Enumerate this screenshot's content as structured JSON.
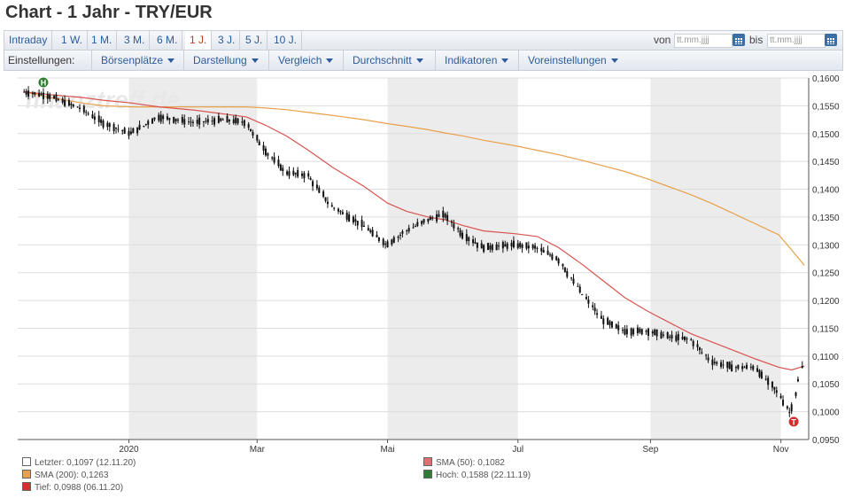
{
  "title": "Chart - 1 Jahr - TRY/EUR",
  "ranges": [
    "Intraday",
    "1 W.",
    "1 M.",
    "3 M.",
    "6 M.",
    "1 J.",
    "3 J.",
    "5 J.",
    "10 J."
  ],
  "active_range": "1 J.",
  "date_from_label": "von",
  "date_to_label": "bis",
  "date_placeholder": "tt.mm.jjjj",
  "settings_label": "Einstellungen:",
  "menus": [
    "Börsenplätze",
    "Darstellung",
    "Vergleich",
    "Durchschnitt",
    "Indikatoren",
    "Voreinstellungen"
  ],
  "watermark": "finanztreff.de",
  "colors": {
    "candle": "#111111",
    "sma50": "#d9534f",
    "sma200": "#e8a04a",
    "band": "#ececec",
    "grid": "#dddddd",
    "high_marker": "#2e7d32",
    "low_marker": "#d32f2f"
  },
  "legend": [
    {
      "label": "Letzter: 0,1097 (12.11.20)",
      "color": "#ffffff"
    },
    {
      "label": "SMA (50): 0,1082",
      "color": "#e07070"
    },
    {
      "label": "SMA (200): 0,1263",
      "color": "#e8a04a"
    },
    {
      "label": "Hoch: 0,1588 (22.11.19)",
      "color": "#2e7d32"
    },
    {
      "label": "Tief: 0,0988 (06.11.20)",
      "color": "#d32f2f"
    }
  ],
  "markers": {
    "high_letter": "H",
    "low_letter": "T"
  },
  "chart_data": {
    "type": "line",
    "ylim": [
      0.095,
      0.16
    ],
    "y_ticks": [
      "0,1600",
      "0,1550",
      "0,1500",
      "0,1450",
      "0,1400",
      "0,1350",
      "0,1300",
      "0,1250",
      "0,1200",
      "0,1150",
      "0,1100",
      "0,1050",
      "0,1000",
      "0,0950"
    ],
    "x_ticks": [
      "2020",
      "Mar",
      "Mai",
      "Jul",
      "Sep",
      "Nov"
    ],
    "x": [
      "2019-11-13",
      "2019-11-25",
      "2019-12-10",
      "2019-12-20",
      "2020-01-02",
      "2020-01-15",
      "2020-02-01",
      "2020-02-15",
      "2020-02-25",
      "2020-03-05",
      "2020-03-15",
      "2020-03-25",
      "2020-04-05",
      "2020-04-20",
      "2020-05-01",
      "2020-05-10",
      "2020-05-20",
      "2020-05-28",
      "2020-06-05",
      "2020-06-15",
      "2020-06-30",
      "2020-07-10",
      "2020-07-20",
      "2020-07-31",
      "2020-08-10",
      "2020-08-20",
      "2020-08-31",
      "2020-09-10",
      "2020-09-20",
      "2020-09-30",
      "2020-10-10",
      "2020-10-20",
      "2020-10-31",
      "2020-11-06",
      "2020-11-12"
    ],
    "series": [
      {
        "values": [
          0.1575,
          0.1568,
          0.1545,
          0.152,
          0.15,
          0.153,
          0.152,
          0.1525,
          0.152,
          0.147,
          0.143,
          0.1425,
          0.137,
          0.1335,
          0.13,
          0.1325,
          0.1345,
          0.1355,
          0.132,
          0.1295,
          0.13,
          0.1295,
          0.1275,
          0.1215,
          0.1165,
          0.1145,
          0.1145,
          0.1135,
          0.113,
          0.109,
          0.108,
          0.108,
          0.1035,
          0.0995,
          0.1097
        ]
      },
      {
        "values": [
          0.1575,
          0.157,
          0.1565,
          0.156,
          0.1555,
          0.1548,
          0.1542,
          0.1535,
          0.153,
          0.1515,
          0.1495,
          0.147,
          0.144,
          0.1405,
          0.1375,
          0.136,
          0.135,
          0.1345,
          0.1335,
          0.1325,
          0.132,
          0.1315,
          0.1295,
          0.1265,
          0.1235,
          0.1205,
          0.118,
          0.116,
          0.114,
          0.1125,
          0.111,
          0.1095,
          0.108,
          0.1075,
          0.1082
        ]
      },
      {
        "values": [
          0.1575,
          0.1565,
          0.1555,
          0.155,
          0.1548,
          0.1548,
          0.1548,
          0.1548,
          0.1548,
          0.1546,
          0.1543,
          0.1538,
          0.1533,
          0.1525,
          0.1518,
          0.1513,
          0.1507,
          0.1501,
          0.1496,
          0.1488,
          0.1478,
          0.147,
          0.1462,
          0.1452,
          0.1442,
          0.1432,
          0.1418,
          0.1404,
          0.139,
          0.1374,
          0.1356,
          0.1338,
          0.1318,
          0.1291,
          0.1263
        ]
      }
    ]
  }
}
